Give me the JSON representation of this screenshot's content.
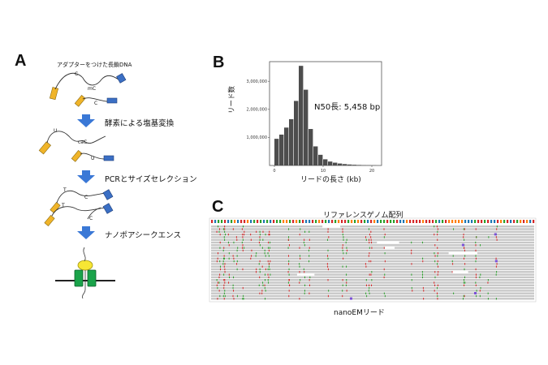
{
  "panels": {
    "a": {
      "letter": "A",
      "dna_label": "アダプターをつけた長鎖DNA",
      "steps": [
        "酵素による塩基変換",
        "PCRとサイズセレクション",
        "ナノポアシークエンス"
      ],
      "stage1_bases": [
        "C",
        "mC",
        "C"
      ],
      "stage2_bases": [
        "U",
        "caC",
        "U"
      ],
      "stage3_bases": [
        "T",
        "C",
        "T",
        "C"
      ],
      "colors": {
        "adapter_orange": "#f0b429",
        "adapter_blue": "#3b6fc4",
        "arrow": "#3a78d6",
        "pore_green": "#1aa34a",
        "motor_yellow": "#f7e634"
      }
    },
    "b": {
      "letter": "B",
      "annotation": "N50長: 5,458 bp"
    },
    "c": {
      "letter": "C",
      "top_label": "リファレンスゲノム配列",
      "bottom_label": "nanoEMリード"
    }
  },
  "chart_data": {
    "type": "bar",
    "xlabel": "リードの長さ (kb)",
    "ylabel": "リード数",
    "x_ticks": [
      "0",
      "10",
      "20"
    ],
    "y_ticks": [
      "1,000,000",
      "2,000,000",
      "3,000,000"
    ],
    "xlim": [
      -1,
      22
    ],
    "ylim": [
      0,
      3700000
    ],
    "bin_width": 1,
    "bins": [
      0,
      1,
      2,
      3,
      4,
      5,
      6,
      7,
      8,
      9,
      10,
      11,
      12,
      13,
      14,
      15,
      16,
      17,
      18,
      19,
      20
    ],
    "values": [
      950000,
      1100000,
      1350000,
      1650000,
      2300000,
      3550000,
      2700000,
      1300000,
      680000,
      380000,
      220000,
      140000,
      100000,
      70000,
      50000,
      35000,
      25000,
      18000,
      12000,
      8000,
      5000
    ],
    "bar_color": "#4d4d4d"
  }
}
